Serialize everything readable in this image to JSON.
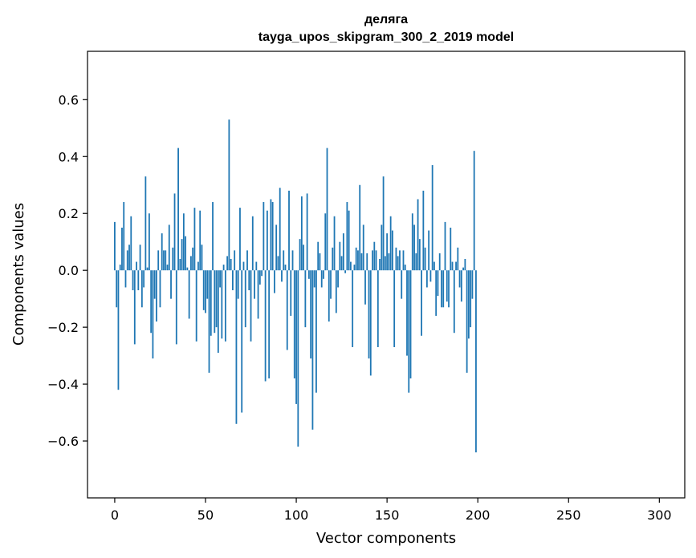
{
  "chart_data": {
    "type": "bar",
    "title": "деляга",
    "subtitle": "tayga_upos_skipgram_300_2_2019 model",
    "xlabel": "Vector components",
    "ylabel": "Components values",
    "xlim": [
      -15,
      314
    ],
    "ylim": [
      -0.8,
      0.77
    ],
    "xticks": [
      0,
      50,
      100,
      150,
      200,
      250,
      300
    ],
    "xtick_labels": [
      "0",
      "50",
      "100",
      "150",
      "200",
      "250",
      "300"
    ],
    "yticks": [
      -0.6,
      -0.4,
      -0.2,
      0.0,
      0.2,
      0.4,
      0.6
    ],
    "ytick_labels": [
      "−0.6",
      "−0.4",
      "−0.2",
      "0.0",
      "0.2",
      "0.4",
      "0.6"
    ],
    "grid": false,
    "bar_color": "#1f77b4",
    "x_start": 0,
    "values": [
      0.17,
      -0.13,
      -0.42,
      0.02,
      0.15,
      0.24,
      -0.06,
      0.07,
      0.09,
      0.19,
      -0.07,
      -0.26,
      0.03,
      -0.07,
      0.09,
      -0.13,
      -0.06,
      0.33,
      0.01,
      0.2,
      -0.22,
      -0.31,
      -0.1,
      -0.18,
      0.07,
      -0.13,
      0.13,
      0.07,
      0.07,
      0.02,
      0.16,
      -0.1,
      0.08,
      0.27,
      -0.26,
      0.43,
      0.04,
      0.11,
      0.2,
      0.12,
      0.01,
      -0.17,
      0.05,
      0.08,
      0.22,
      -0.25,
      0.03,
      0.21,
      0.09,
      -0.14,
      -0.15,
      -0.1,
      -0.36,
      -0.23,
      0.24,
      -0.22,
      -0.2,
      -0.29,
      -0.06,
      -0.24,
      0.02,
      -0.25,
      0.05,
      0.53,
      0.04,
      -0.07,
      0.07,
      -0.54,
      -0.1,
      0.22,
      -0.5,
      0.03,
      -0.2,
      0.07,
      -0.07,
      -0.25,
      0.19,
      -0.1,
      0.03,
      -0.17,
      -0.05,
      -0.02,
      0.24,
      -0.39,
      0.21,
      -0.38,
      0.25,
      0.24,
      -0.08,
      0.16,
      0.05,
      0.29,
      -0.04,
      0.07,
      0.02,
      -0.28,
      0.28,
      -0.16,
      0.07,
      -0.38,
      -0.47,
      -0.62,
      0.11,
      0.26,
      0.09,
      -0.2,
      0.27,
      -0.03,
      -0.31,
      -0.56,
      -0.06,
      -0.43,
      0.1,
      0.06,
      -0.06,
      -0.03,
      0.2,
      0.43,
      -0.18,
      -0.1,
      0.08,
      0.19,
      -0.15,
      -0.06,
      0.1,
      0.05,
      0.13,
      -0.01,
      0.24,
      0.21,
      0.03,
      -0.27,
      0.02,
      0.08,
      0.07,
      0.3,
      0.06,
      0.16,
      -0.12,
      0.06,
      -0.31,
      -0.37,
      0.07,
      0.1,
      0.07,
      -0.27,
      0.04,
      0.16,
      0.33,
      0.05,
      0.13,
      0.06,
      0.19,
      0.14,
      -0.27,
      0.08,
      0.05,
      0.07,
      -0.1,
      0.07,
      0.02,
      -0.3,
      -0.43,
      -0.38,
      0.2,
      0.16,
      0.06,
      0.25,
      0.11,
      -0.23,
      0.28,
      0.08,
      -0.06,
      0.14,
      -0.04,
      0.37,
      0.03,
      -0.16,
      -0.09,
      0.06,
      -0.13,
      -0.13,
      0.17,
      -0.11,
      -0.13,
      0.15,
      0.03,
      -0.22,
      0.03,
      0.08,
      -0.06,
      -0.11,
      0.01,
      0.04,
      -0.36,
      -0.24,
      -0.2,
      -0.1,
      0.42,
      -0.64
    ]
  }
}
